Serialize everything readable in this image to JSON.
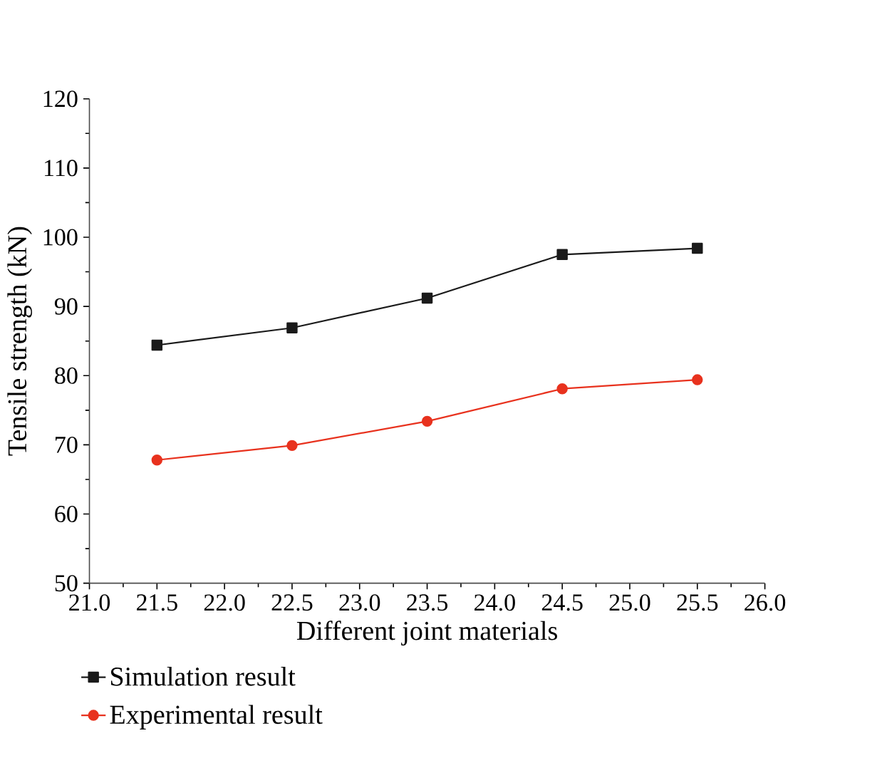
{
  "chart_data": {
    "type": "line",
    "xlabel": "Different joint materials",
    "ylabel": "Tensile strength (kN)",
    "x": [
      21.5,
      22.5,
      23.5,
      24.5,
      25.5
    ],
    "series": [
      {
        "name": "Simulation result",
        "color": "#1a1a1a",
        "marker": "square",
        "values": [
          84.4,
          86.9,
          91.2,
          97.5,
          98.4
        ]
      },
      {
        "name": "Experimental result",
        "color": "#e8321e",
        "marker": "circle",
        "values": [
          67.8,
          69.9,
          73.4,
          78.1,
          79.4
        ]
      }
    ],
    "xlim": [
      21.0,
      26.0
    ],
    "xticks": [
      {
        "value": 21.0,
        "label": "21.0"
      },
      {
        "value": 21.5,
        "label": "21.5"
      },
      {
        "value": 22.0,
        "label": "22.0"
      },
      {
        "value": 22.5,
        "label": "22.5"
      },
      {
        "value": 23.0,
        "label": "23.0"
      },
      {
        "value": 23.5,
        "label": "23.5"
      },
      {
        "value": 24.0,
        "label": "24.0"
      },
      {
        "value": 24.5,
        "label": "24.5"
      },
      {
        "value": 25.0,
        "label": "25.0"
      },
      {
        "value": 25.5,
        "label": "25.5"
      },
      {
        "value": 26.0,
        "label": "26.0"
      }
    ],
    "ylim": [
      50,
      120
    ],
    "yticks": [
      50,
      60,
      70,
      80,
      90,
      100,
      110,
      120
    ],
    "grid": false,
    "legend": "bottom left",
    "line_style": "solid"
  }
}
